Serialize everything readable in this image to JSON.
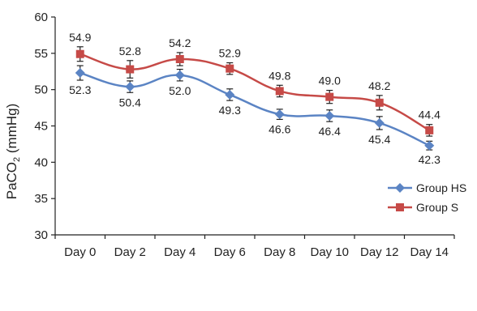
{
  "colors": {
    "group_hs": "#5b84c4",
    "group_s": "#c64a47",
    "axis": "#222222"
  },
  "chart_data": {
    "type": "line",
    "title": "",
    "xlabel": "",
    "ylabel": "PaCO",
    "ylabel_subscript": "2",
    "ylabel_suffix": " (mmHg)",
    "categories": [
      "Day 0",
      "Day 2",
      "Day 4",
      "Day 6",
      "Day 8",
      "Day 10",
      "Day 12",
      "Day 14"
    ],
    "ylim": [
      30,
      60
    ],
    "yticks": [
      30,
      35,
      40,
      45,
      50,
      55,
      60
    ],
    "grid": false,
    "legend_position": "bottom-right",
    "series": [
      {
        "name": "Group HS",
        "marker": "diamond",
        "values": [
          52.3,
          50.4,
          52.0,
          49.3,
          46.6,
          46.4,
          45.4,
          42.3
        ],
        "labels": [
          "52.3",
          "50.4",
          "52.0",
          "49.3",
          "46.6",
          "46.4",
          "45.4",
          "42.3"
        ],
        "error": [
          1.0,
          0.8,
          0.8,
          0.8,
          0.7,
          0.8,
          0.9,
          0.6
        ]
      },
      {
        "name": "Group S",
        "marker": "square",
        "values": [
          54.9,
          52.8,
          54.2,
          52.9,
          49.8,
          49.0,
          48.2,
          44.4
        ],
        "labels": [
          "54.9",
          "52.8",
          "54.2",
          "52.9",
          "49.8",
          "49.0",
          "48.2",
          "44.4"
        ],
        "error": [
          1.0,
          1.2,
          0.9,
          0.8,
          0.8,
          0.9,
          1.0,
          0.8
        ]
      }
    ]
  }
}
